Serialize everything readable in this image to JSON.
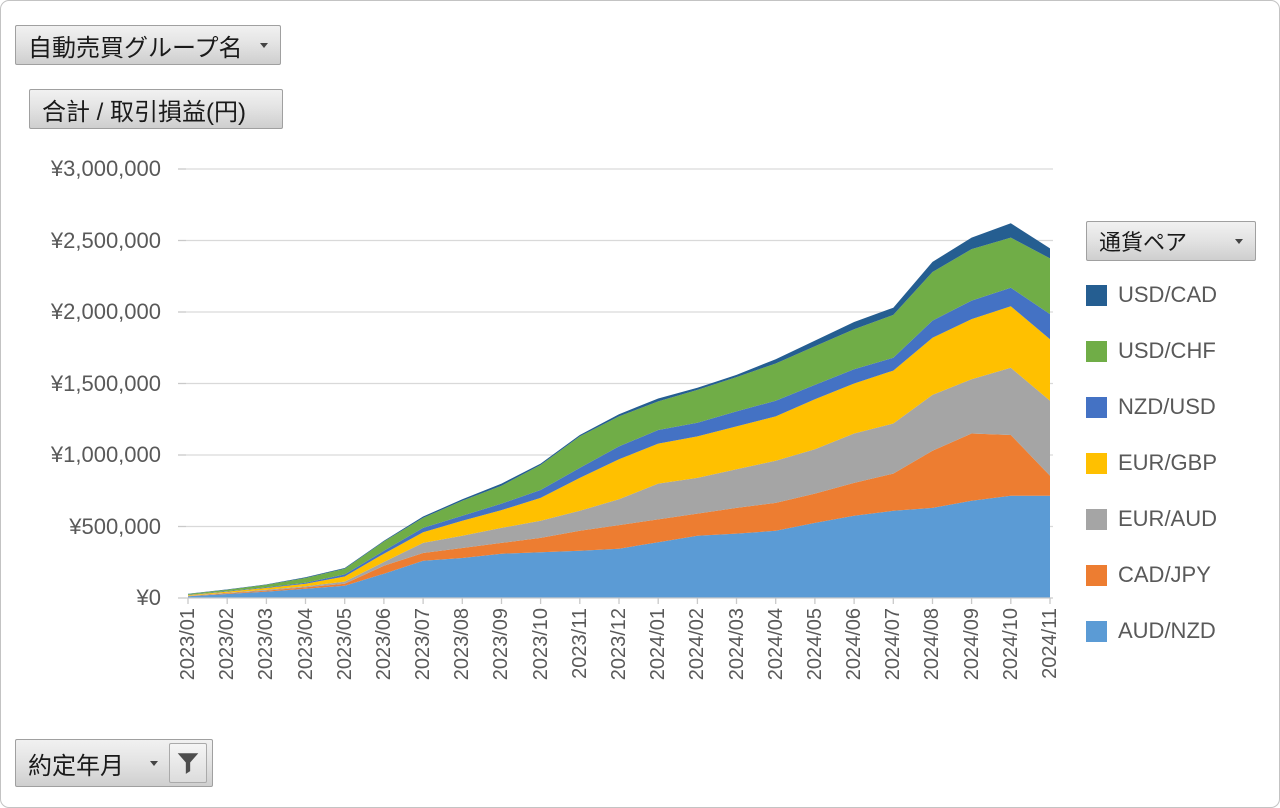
{
  "field_buttons": {
    "group_name": "自動売買グループ名",
    "value_field": "合計 / 取引損益(円)",
    "legend_field": "通貨ペア",
    "axis_field": "約定年月"
  },
  "chart_data": {
    "type": "area",
    "stacked": true,
    "title": "合計 / 取引損益(円)",
    "xlabel": "約定年月",
    "ylabel": "取引損益(円)",
    "legend_title": "通貨ペア",
    "legend_position": "right",
    "grid": true,
    "categories": [
      "2023/01",
      "2023/02",
      "2023/03",
      "2023/04",
      "2023/05",
      "2023/06",
      "2023/07",
      "2023/08",
      "2023/09",
      "2023/10",
      "2023/11",
      "2023/12",
      "2024/01",
      "2024/02",
      "2024/03",
      "2024/04",
      "2024/05",
      "2024/06",
      "2024/07",
      "2024/08",
      "2024/09",
      "2024/10",
      "2024/11"
    ],
    "series": [
      {
        "name": "AUD/NZD",
        "color": "#5B9BD5",
        "values": [
          12000,
          28000,
          45000,
          65000,
          85000,
          170000,
          260000,
          280000,
          310000,
          320000,
          330000,
          345000,
          390000,
          435000,
          450000,
          470000,
          525000,
          575000,
          610000,
          630000,
          680000,
          715000,
          715000
        ]
      },
      {
        "name": "CAD/JPY",
        "color": "#ED7D31",
        "values": [
          2000,
          5000,
          7000,
          10000,
          15000,
          55000,
          55000,
          70000,
          75000,
          100000,
          140000,
          165000,
          160000,
          155000,
          180000,
          195000,
          205000,
          230000,
          260000,
          400000,
          470000,
          425000,
          140000
        ]
      },
      {
        "name": "EUR/AUD",
        "color": "#A5A5A5",
        "values": [
          2000,
          4000,
          6000,
          7000,
          15000,
          27000,
          70000,
          85000,
          105000,
          120000,
          140000,
          180000,
          250000,
          250000,
          270000,
          295000,
          310000,
          345000,
          350000,
          390000,
          380000,
          470000,
          525000
        ]
      },
      {
        "name": "EUR/GBP",
        "color": "#FFC000",
        "values": [
          4000,
          8000,
          12000,
          18000,
          35000,
          58000,
          75000,
          105000,
          125000,
          160000,
          230000,
          280000,
          280000,
          290000,
          300000,
          310000,
          350000,
          350000,
          370000,
          400000,
          420000,
          430000,
          430000
        ]
      },
      {
        "name": "NZD/USD",
        "color": "#4472C4",
        "values": [
          2000,
          3000,
          4000,
          7000,
          15000,
          20000,
          30000,
          35000,
          45000,
          55000,
          70000,
          90000,
          95000,
          95000,
          105000,
          110000,
          100000,
          100000,
          90000,
          120000,
          130000,
          130000,
          175000
        ]
      },
      {
        "name": "USD/CHF",
        "color": "#70AD47",
        "values": [
          6000,
          10000,
          18000,
          33000,
          40000,
          65000,
          70000,
          105000,
          125000,
          175000,
          220000,
          210000,
          200000,
          230000,
          240000,
          260000,
          270000,
          280000,
          300000,
          340000,
          360000,
          350000,
          390000
        ]
      },
      {
        "name": "USD/CAD",
        "color": "#255E91",
        "values": [
          2000,
          2000,
          3000,
          5000,
          5000,
          5000,
          10000,
          10000,
          15000,
          10000,
          10000,
          15000,
          20000,
          15000,
          15000,
          30000,
          40000,
          50000,
          50000,
          70000,
          80000,
          100000,
          70000
        ]
      }
    ],
    "legend_order_top_to_bottom": [
      "USD/CAD",
      "USD/CHF",
      "NZD/USD",
      "EUR/GBP",
      "EUR/AUD",
      "CAD/JPY",
      "AUD/NZD"
    ],
    "y_axis": {
      "min": 0,
      "max": 3000000,
      "tick_interval": 500000,
      "tick_labels": [
        "¥0",
        "¥500,000",
        "¥1,000,000",
        "¥1,500,000",
        "¥2,000,000",
        "¥2,500,000",
        "¥3,000,000"
      ]
    },
    "x_axis": {
      "label_rotation": -90
    }
  }
}
